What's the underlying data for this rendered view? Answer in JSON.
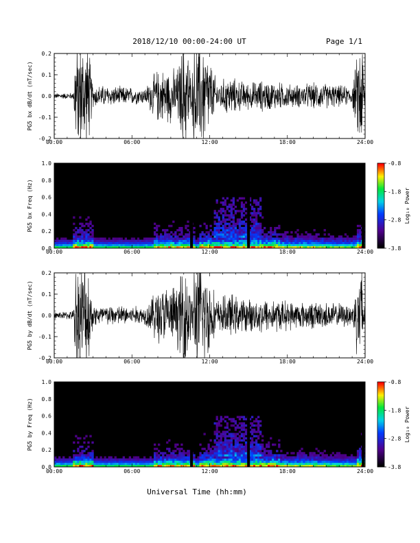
{
  "header": {
    "title": "2018/12/10   00:00-24:00 UT",
    "page": "Page 1/1"
  },
  "footer": {
    "xlabel": "Universal Time (hh:mm)"
  },
  "chart_data": [
    {
      "type": "line",
      "ylabel": "PG5 bx dB/dt (nT/sec)",
      "xlim": [
        0,
        24
      ],
      "ylim": [
        -0.2,
        0.2
      ],
      "x_ticklabels": [
        "00:00",
        "06:00",
        "12:00",
        "18:00",
        "24:00"
      ],
      "y_ticklabels": [
        "0.2",
        "0.1",
        "0.0",
        "-0.1",
        "-0.2"
      ],
      "y_tickvalues": [
        0.2,
        0.1,
        0.0,
        -0.1,
        -0.2
      ],
      "envelope_hours": [
        0,
        1.5,
        1.6,
        2.6,
        3.0,
        7.0,
        8.0,
        9.5,
        10.0,
        10.3,
        10.6,
        10.8,
        11.5,
        12.6,
        13.5,
        14.2,
        15.0,
        16.0,
        17.5,
        18.5,
        20.5,
        23.0,
        23.6,
        23.8,
        24.0
      ],
      "envelope_amp": [
        0.012,
        0.015,
        0.25,
        0.25,
        0.05,
        0.035,
        0.12,
        0.12,
        0.25,
        0.25,
        0.05,
        0.25,
        0.25,
        0.06,
        0.09,
        0.07,
        0.06,
        0.07,
        0.06,
        0.05,
        0.06,
        0.04,
        0.25,
        0.25,
        0.02
      ]
    },
    {
      "type": "heatmap",
      "ylabel": "PG5 bx Freq (Hz)",
      "xlim": [
        0,
        24
      ],
      "ylim": [
        0,
        1
      ],
      "x_ticklabels": [
        "00:00",
        "06:00",
        "12:00",
        "18:00",
        "24:00"
      ],
      "y_ticklabels": [
        "1.0",
        "0.8",
        "0.6",
        "0.4",
        "0.2",
        "0.0"
      ],
      "y_tickvalues": [
        1.0,
        0.8,
        0.6,
        0.4,
        0.2,
        0.0
      ],
      "colorbar": {
        "label": "Log₁₀ Power",
        "range": [
          -3.8,
          -0.8
        ],
        "ticklabels": [
          "-0.8",
          "-1.8",
          "-2.8",
          "-3.8"
        ]
      },
      "gaps_hours": [
        10.6,
        15.0,
        23.85
      ]
    },
    {
      "type": "line",
      "ylabel": "PG5 by dB/dt (nT/sec)",
      "xlim": [
        0,
        24
      ],
      "ylim": [
        -0.2,
        0.2
      ],
      "x_ticklabels": [
        "00:00",
        "06:00",
        "12:00",
        "18:00",
        "24:00"
      ],
      "y_ticklabels": [
        "0.2",
        "0.1",
        "0.0",
        "-0.1",
        "-0.2"
      ],
      "y_tickvalues": [
        0.2,
        0.1,
        0.0,
        -0.1,
        -0.2
      ],
      "envelope_hours": [
        0,
        1.5,
        1.6,
        2.6,
        3.0,
        7.0,
        8.0,
        9.5,
        10.0,
        10.3,
        10.6,
        10.8,
        11.5,
        12.6,
        13.5,
        14.2,
        15.0,
        16.0,
        17.5,
        18.5,
        20.5,
        23.0,
        23.6,
        23.8,
        24.0
      ],
      "envelope_amp": [
        0.015,
        0.02,
        0.25,
        0.25,
        0.05,
        0.04,
        0.13,
        0.13,
        0.25,
        0.25,
        0.06,
        0.25,
        0.25,
        0.07,
        0.1,
        0.08,
        0.07,
        0.08,
        0.07,
        0.06,
        0.06,
        0.05,
        0.25,
        0.25,
        0.02
      ]
    },
    {
      "type": "heatmap",
      "ylabel": "PG5 by Freq (Hz)",
      "xlim": [
        0,
        24
      ],
      "ylim": [
        0,
        1
      ],
      "x_ticklabels": [
        "00:00",
        "06:00",
        "12:00",
        "18:00",
        "24:00"
      ],
      "y_ticklabels": [
        "1.0",
        "0.8",
        "0.6",
        "0.4",
        "0.2",
        "0.0"
      ],
      "y_tickvalues": [
        1.0,
        0.8,
        0.6,
        0.4,
        0.2,
        0.0
      ],
      "colorbar": {
        "label": "Log₁₀ Power",
        "range": [
          -3.8,
          -0.8
        ],
        "ticklabels": [
          "-0.8",
          "-1.8",
          "-2.8",
          "-3.8"
        ]
      },
      "gaps_hours": [
        10.6,
        15.0,
        23.85
      ]
    }
  ]
}
